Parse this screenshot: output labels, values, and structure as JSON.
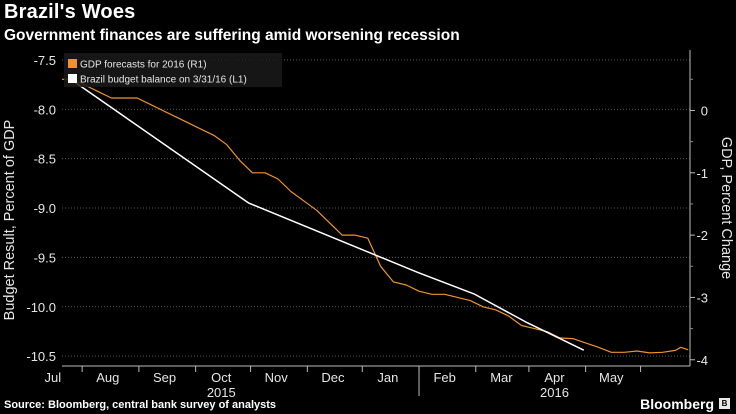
{
  "header": {
    "title": "Brazil's Woes",
    "subtitle": "Government finances are suffering amid worsening recession"
  },
  "footer": {
    "source": "Source: Bloomberg, central bank survey of analysts",
    "brand": "Bloomberg"
  },
  "colors": {
    "background": "#000000",
    "gdp_series": "#f0922b",
    "budget_series": "#ffffff",
    "grid": "#5a5a5a",
    "axis_text": "#e6e6e6"
  },
  "chart_data": {
    "type": "line",
    "xlabel": "",
    "x_ticks": [
      "Jul",
      "Aug",
      "Sep",
      "Oct",
      "Nov",
      "Dec",
      "Jan",
      "Feb",
      "Mar",
      "Apr",
      "May"
    ],
    "x_year_labels": [
      {
        "label": "2015",
        "date": "2015-09-15"
      },
      {
        "label": "2016",
        "date": "2016-03-15"
      }
    ],
    "x_range": [
      "2015-06-20",
      "2016-05-28"
    ],
    "left_axis": {
      "label": "Budget Result, Percent of GDP",
      "ylim": [
        -10.6,
        -7.4
      ],
      "ticks": [
        "-7.5",
        "-8.0",
        "-8.5",
        "-9.0",
        "-9.5",
        "-10.0",
        "-10.5"
      ]
    },
    "right_axis": {
      "label": "GDP, Percent Change",
      "ylim": [
        -4.1,
        0.97
      ],
      "ticks": [
        "0",
        "-1",
        "-2",
        "-3",
        "-4"
      ]
    },
    "grid": true,
    "legend_position": "top-left",
    "series": [
      {
        "name": "GDP forecasts for 2016 (R1)",
        "axis": "right",
        "color": "#f0922b",
        "points": [
          [
            "2015-06-20",
            0.5
          ],
          [
            "2015-06-26",
            0.5
          ],
          [
            "2015-07-03",
            0.4
          ],
          [
            "2015-07-10",
            0.3
          ],
          [
            "2015-07-17",
            0.2
          ],
          [
            "2015-07-24",
            0.2
          ],
          [
            "2015-07-31",
            0.2
          ],
          [
            "2015-08-07",
            0.1
          ],
          [
            "2015-08-14",
            0.0
          ],
          [
            "2015-08-21",
            -0.1
          ],
          [
            "2015-08-28",
            -0.2
          ],
          [
            "2015-09-04",
            -0.3
          ],
          [
            "2015-09-11",
            -0.4
          ],
          [
            "2015-09-18",
            -0.55
          ],
          [
            "2015-09-25",
            -0.8
          ],
          [
            "2015-10-02",
            -1.0
          ],
          [
            "2015-10-09",
            -1.0
          ],
          [
            "2015-10-16",
            -1.1
          ],
          [
            "2015-10-23",
            -1.3
          ],
          [
            "2015-10-30",
            -1.45
          ],
          [
            "2015-11-06",
            -1.6
          ],
          [
            "2015-11-13",
            -1.8
          ],
          [
            "2015-11-20",
            -2.0
          ],
          [
            "2015-11-27",
            -2.0
          ],
          [
            "2015-12-04",
            -2.05
          ],
          [
            "2015-12-11",
            -2.5
          ],
          [
            "2015-12-18",
            -2.75
          ],
          [
            "2015-12-25",
            -2.8
          ],
          [
            "2016-01-01",
            -2.9
          ],
          [
            "2016-01-08",
            -2.95
          ],
          [
            "2016-01-15",
            -2.95
          ],
          [
            "2016-01-22",
            -3.0
          ],
          [
            "2016-01-29",
            -3.05
          ],
          [
            "2016-02-05",
            -3.15
          ],
          [
            "2016-02-12",
            -3.2
          ],
          [
            "2016-02-19",
            -3.3
          ],
          [
            "2016-02-26",
            -3.45
          ],
          [
            "2016-03-04",
            -3.5
          ],
          [
            "2016-03-11",
            -3.55
          ],
          [
            "2016-03-18",
            -3.65
          ],
          [
            "2016-03-25",
            -3.66
          ],
          [
            "2016-04-01",
            -3.73
          ],
          [
            "2016-04-08",
            -3.8
          ],
          [
            "2016-04-15",
            -3.88
          ],
          [
            "2016-04-22",
            -3.88
          ],
          [
            "2016-04-29",
            -3.86
          ],
          [
            "2016-05-06",
            -3.89
          ],
          [
            "2016-05-13",
            -3.88
          ],
          [
            "2016-05-20",
            -3.85
          ],
          [
            "2016-05-23",
            -3.8
          ],
          [
            "2016-05-27",
            -3.84
          ]
        ]
      },
      {
        "name": "Brazil budget balance on 3/31/16 (L1)",
        "axis": "left",
        "color": "#ffffff",
        "points": [
          [
            "2015-06-25",
            -7.7
          ],
          [
            "2015-09-30",
            -8.95
          ],
          [
            "2015-12-31",
            -9.65
          ],
          [
            "2016-01-31",
            -9.87
          ],
          [
            "2016-02-29",
            -10.16
          ],
          [
            "2016-03-31",
            -10.44
          ]
        ]
      }
    ]
  }
}
